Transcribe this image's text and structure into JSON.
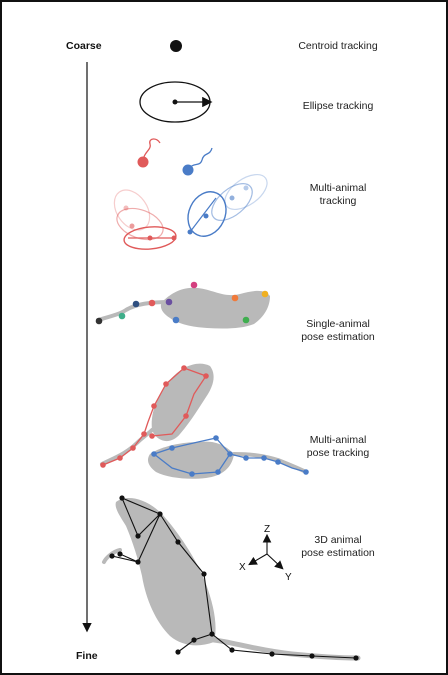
{
  "axis": {
    "top_label": "Coarse",
    "bottom_label": "Fine"
  },
  "stages": [
    {
      "id": "centroid",
      "label": "Centroid tracking"
    },
    {
      "id": "ellipse",
      "label": "Ellipse tracking"
    },
    {
      "id": "multi-animal-tracking",
      "label": "Multi-animal\ntracking"
    },
    {
      "id": "single-animal-pose",
      "label": "Single-animal\npose estimation"
    },
    {
      "id": "multi-animal-pose",
      "label": "Multi-animal\npose tracking"
    },
    {
      "id": "3d-pose",
      "label": "3D animal\npose estimation"
    }
  ],
  "axes3d": {
    "z": "Z",
    "x": "X",
    "y": "Y"
  },
  "colors": {
    "red": "#e05a5a",
    "blue": "#4a7cc7",
    "body": "#b9b9b9",
    "keypoint_magenta": "#d43f7f",
    "keypoint_orange": "#f07a3a",
    "keypoint_yellow": "#f0b020",
    "keypoint_green": "#3fae4f",
    "keypoint_teal": "#3fae8a",
    "keypoint_purple": "#6a4fa0",
    "keypoint_navy": "#2f4f80",
    "keypoint_dark": "#333333"
  }
}
